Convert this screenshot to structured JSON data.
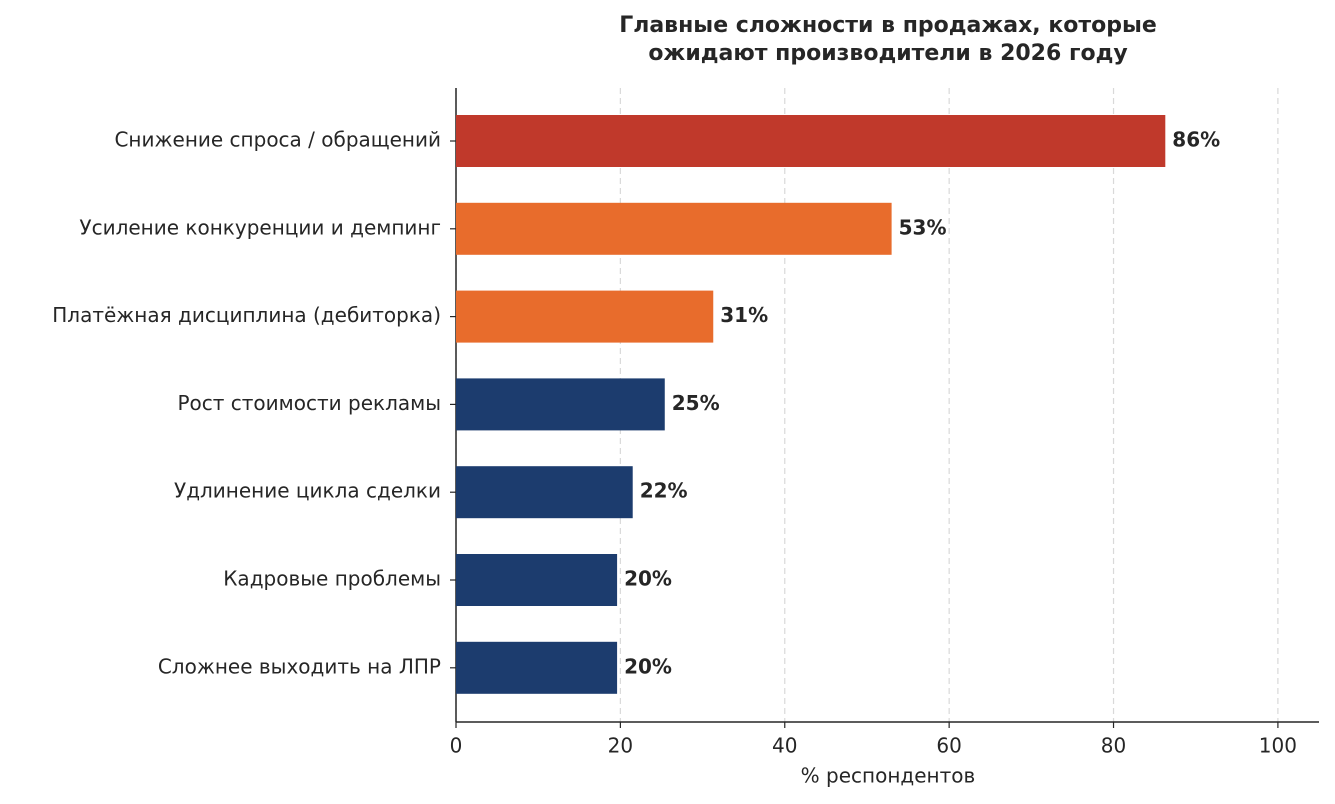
{
  "chart_data": {
    "type": "barh",
    "title": [
      "Главные сложности в продажах, которые",
      "ожидают производители в 2026 году"
    ],
    "xlabel": "% респондентов",
    "categories": [
      "Снижение спроса / обращений",
      "Усиление конкуренции и демпинг",
      "Платёжная дисциплина (дебиторка)",
      "Рост стоимости рекламы",
      "Удлинение цикла сделки",
      "Кадровые проблемы",
      "Сложнее выходить на ЛПР"
    ],
    "values": [
      86.3,
      53,
      31.3,
      25.4,
      21.5,
      19.6,
      19.6
    ],
    "value_labels": [
      "86%",
      "53%",
      "31%",
      "25%",
      "22%",
      "20%",
      "20%"
    ],
    "colors": [
      "#c0392b",
      "#e86c2c",
      "#e86c2c",
      "#1c3c6e",
      "#1c3c6e",
      "#1c3c6e",
      "#1c3c6e"
    ],
    "xlim": [
      0,
      105
    ],
    "xticks": [
      0,
      20,
      40,
      60,
      80,
      100
    ],
    "grid": true
  }
}
